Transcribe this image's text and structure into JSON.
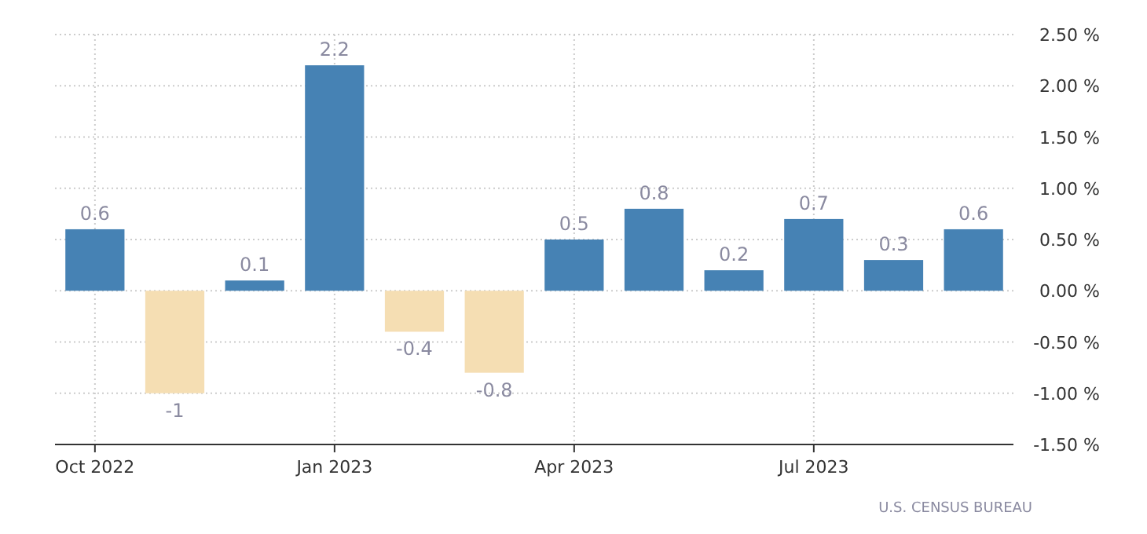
{
  "chart_data": {
    "type": "bar",
    "categories": [
      "Oct 2022",
      null,
      null,
      "Jan 2023",
      null,
      null,
      "Apr 2023",
      null,
      null,
      "Jul 2023",
      null,
      null
    ],
    "values": [
      0.6,
      -1,
      0.1,
      2.2,
      -0.4,
      -0.8,
      0.5,
      0.8,
      0.2,
      0.7,
      0.3,
      0.6
    ],
    "colors": [
      "#4682b4",
      "#f5deb3",
      "#4682b4",
      "#4682b4",
      "#f5deb3",
      "#f5deb3",
      "#4682b4",
      "#4682b4",
      "#4682b4",
      "#4682b4",
      "#4682b4",
      "#4682b4"
    ],
    "ylim": [
      -1.5,
      2.5
    ],
    "yticks": [
      {
        "value": 2.5,
        "label": "2.50 %"
      },
      {
        "value": 2,
        "label": "2.00 %"
      },
      {
        "value": 1.5,
        "label": "1.50 %"
      },
      {
        "value": 1,
        "label": "1.00 %"
      },
      {
        "value": 0.5,
        "label": "0.50 %"
      },
      {
        "value": 0,
        "label": "0.00 %"
      },
      {
        "value": -0.5,
        "label": "-0.50 %"
      },
      {
        "value": -1,
        "label": "-1.00 %"
      },
      {
        "value": -1.5,
        "label": "-1.50 %"
      }
    ],
    "grid": true,
    "data_labels": true,
    "annotations": [
      "U.S. CENSUS BUREAU"
    ]
  }
}
